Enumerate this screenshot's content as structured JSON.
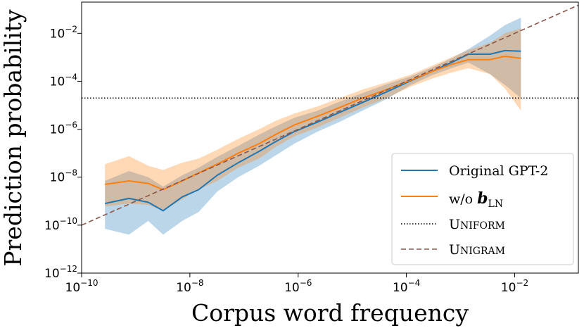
{
  "chart_data": {
    "type": "line",
    "xlabel": "Corpus word frequency",
    "ylabel": "Prediction probability",
    "xscale": "log",
    "yscale": "log",
    "xlim": [
      1e-10,
      0.15
    ],
    "ylim": [
      1e-12,
      0.2
    ],
    "x_ticks": [
      {
        "value": 1e-10,
        "base": "10",
        "exp": "−10"
      },
      {
        "value": 1e-08,
        "base": "10",
        "exp": "−8"
      },
      {
        "value": 1e-06,
        "base": "10",
        "exp": "−6"
      },
      {
        "value": 0.0001,
        "base": "10",
        "exp": "−4"
      },
      {
        "value": 0.01,
        "base": "10",
        "exp": "−2"
      }
    ],
    "y_ticks": [
      {
        "value": 1e-12,
        "base": "10",
        "exp": "−12"
      },
      {
        "value": 1e-10,
        "base": "10",
        "exp": "−10"
      },
      {
        "value": 1e-08,
        "base": "10",
        "exp": "−8"
      },
      {
        "value": 1e-06,
        "base": "10",
        "exp": "−6"
      },
      {
        "value": 0.0001,
        "base": "10",
        "exp": "−4"
      },
      {
        "value": 0.01,
        "base": "10",
        "exp": "−2"
      }
    ],
    "grid": false,
    "legend_position": "lower-right",
    "series": [
      {
        "name": "Original GPT-2",
        "color": "#1f77b4",
        "style": "solid",
        "x": [
          2.7e-10,
          7.5e-10,
          1.7e-09,
          3.2e-09,
          7.2e-09,
          1.45e-08,
          3.2e-08,
          7.8e-08,
          1.9e-07,
          3.8e-07,
          8.5e-07,
          2.3e-06,
          5.8e-06,
          1.55e-05,
          4.3e-05,
          0.00012,
          0.0003,
          0.00068,
          0.0014,
          0.0035,
          0.0066,
          0.013
        ],
        "y": [
          8e-10,
          1.3e-09,
          9e-10,
          4e-10,
          1.5e-09,
          3e-09,
          1.2e-08,
          4e-08,
          1.2e-07,
          3e-07,
          8e-07,
          2e-06,
          5e-06,
          1.3e-05,
          3.6e-05,
          0.000105,
          0.00026,
          0.0006,
          0.00135,
          0.00135,
          0.0019,
          0.0018
        ],
        "lower": [
          7e-11,
          4e-11,
          1.5e-10,
          4e-11,
          1.5e-10,
          3.5e-10,
          2.5e-09,
          1e-08,
          3e-08,
          8e-08,
          2.5e-07,
          8e-07,
          2e-06,
          6e-06,
          1.8e-05,
          7e-05,
          0.00018,
          0.00035,
          0.0006,
          0.0002,
          7e-05,
          2e-05
        ],
        "upper": [
          7e-09,
          1.8e-08,
          1e-08,
          4e-09,
          1.2e-08,
          2.5e-08,
          7e-08,
          2e-07,
          6e-07,
          1.3e-06,
          3e-06,
          6e-06,
          1.4e-05,
          3.2e-05,
          7.5e-05,
          0.00016,
          0.00038,
          0.0009,
          0.0022,
          0.008,
          0.022,
          0.045
        ]
      },
      {
        "name": "w/o b_LN",
        "color": "#ff7f0e",
        "style": "solid",
        "x": [
          2.7e-10,
          7.5e-10,
          1.7e-09,
          3.2e-09,
          7.2e-09,
          1.45e-08,
          3.2e-08,
          7.8e-08,
          1.9e-07,
          3.8e-07,
          8.5e-07,
          2.3e-06,
          5.8e-06,
          1.55e-05,
          4.3e-05,
          0.00012,
          0.0003,
          0.00068,
          0.0014,
          0.0035,
          0.0066,
          0.013
        ],
        "y": [
          5e-09,
          7e-09,
          5.5e-09,
          3e-09,
          7e-09,
          1.5e-08,
          3.5e-08,
          1e-07,
          2.5e-07,
          6e-07,
          1.5e-06,
          3.5e-06,
          8e-06,
          2e-05,
          4.5e-05,
          0.00011,
          0.00026,
          0.0005,
          0.0008,
          0.0008,
          0.0011,
          0.0009
        ],
        "lower": [
          6e-10,
          8e-10,
          7e-10,
          4e-10,
          1.2e-09,
          3e-09,
          7e-09,
          2.5e-08,
          6e-08,
          1.8e-07,
          5e-07,
          1.2e-06,
          3e-06,
          8e-06,
          2e-05,
          6e-05,
          0.00013,
          0.00023,
          0.00035,
          0.0002,
          5e-05,
          6e-06
        ],
        "upper": [
          3.5e-08,
          7.5e-08,
          3e-08,
          2e-08,
          4e-08,
          6e-08,
          1.4e-07,
          4e-07,
          1e-06,
          2.2e-06,
          4.5e-06,
          9e-06,
          2e-05,
          4.5e-05,
          9e-05,
          0.00019,
          0.00045,
          0.001,
          0.002,
          0.004,
          0.01,
          0.016
        ]
      },
      {
        "name": "Uniform",
        "color": "#000000",
        "style": "dotted",
        "y_const": 2e-05
      },
      {
        "name": "Unigram",
        "color": "#8c564b",
        "style": "dashed",
        "x": [
          1e-10,
          0.15
        ],
        "y": [
          1e-10,
          0.15
        ]
      }
    ]
  }
}
